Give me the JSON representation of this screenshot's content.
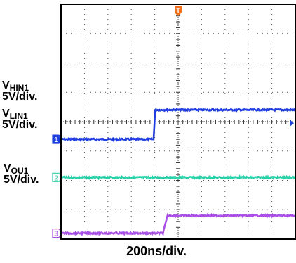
{
  "chart_data": {
    "type": "line",
    "xlabel": "200ns/div.",
    "grid": true,
    "divisions": {
      "x": 10,
      "y": 8
    },
    "trigger_marker": {
      "label": "T",
      "color": "#f07020"
    },
    "x": [
      0,
      3.95,
      4.0,
      10
    ],
    "series": [
      {
        "name": "VHIN1",
        "channel": "1",
        "name_main": "V",
        "name_sub": "HIN1",
        "scale": "5V/div.",
        "color": "#1f3de0",
        "x": [
          0,
          3.95,
          4.02,
          10
        ],
        "y": [
          -0.6,
          -0.6,
          0.4,
          0.4
        ]
      },
      {
        "name": "VLIN1",
        "channel": "2",
        "name_main": "V",
        "name_sub": "LIN1",
        "scale": "5V/div.",
        "color": "#2ad0a8",
        "x": [
          0,
          10
        ],
        "y": [
          -1.9,
          -1.9
        ]
      },
      {
        "name": "VOU1",
        "channel": "3",
        "name_main": "V",
        "name_sub": "OU1",
        "scale": "5V/div.",
        "color": "#a94fe6",
        "x": [
          0,
          4.35,
          4.55,
          10
        ],
        "y": [
          -3.8,
          -3.8,
          -3.2,
          -3.2
        ]
      }
    ]
  }
}
